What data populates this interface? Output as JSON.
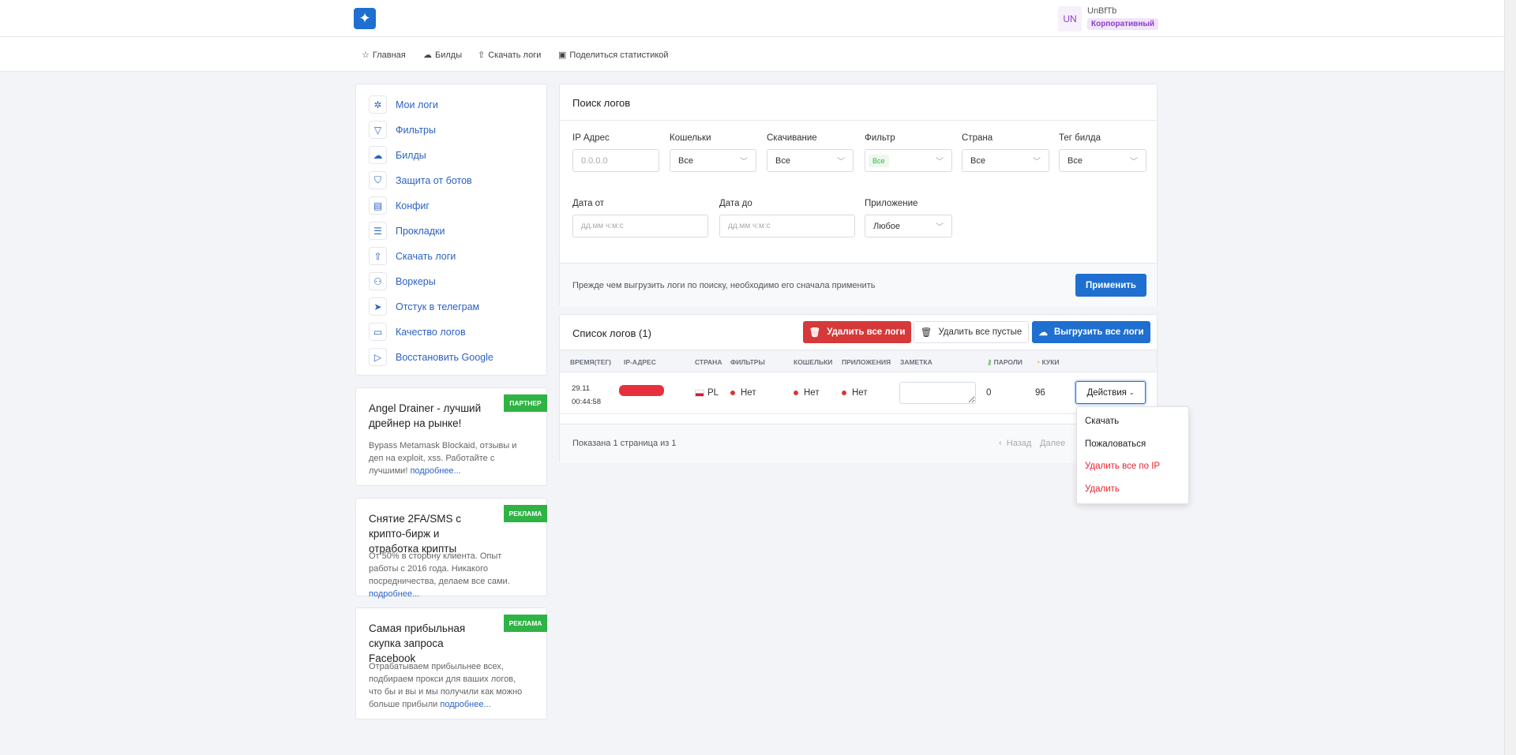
{
  "header": {
    "logo": "hummingbird-logo",
    "avatar": "UN",
    "username": "UnBfTb",
    "plan": "Корпоративный"
  },
  "nav": [
    "Главная",
    "Билды",
    "Скачать логи",
    "Поделиться статистикой"
  ],
  "sidebar": [
    "Мои логи",
    "Фильтры",
    "Билды",
    "Защита от ботов",
    "Конфиг",
    "Прокладки",
    "Скачать логи",
    "Воркеры",
    "Отстук в телеграм",
    "Качество логов",
    "Восстановить Google"
  ],
  "ads": [
    {
      "title": "Angel Drainer - лучший дрейнер на рынке!",
      "body": "Bypass Metamask Blockaid, отзывы и деп на exploit, xss. Работайте с лучшими!",
      "link": "подробнее...",
      "badge": "ПАРТНЕР"
    },
    {
      "title": "Снятие 2FA/SMS с крипто-бирж и отработка крипты",
      "body": "От 50% в сторону клиента. Опыт работы с 2016 года. Никакого посредничества, делаем все сами.",
      "link": "подробнее...",
      "badge": "РЕКЛАМА"
    },
    {
      "title": "Самая прибыльная скупка запроса Facebook",
      "body": "Отрабатываем прибыльнее всех, подбираем прокси для ваших логов, что бы и вы и мы получили как можно больше прибыли",
      "link": "подробнее...",
      "badge": "РЕКЛАМА"
    }
  ],
  "search": {
    "title": "Поиск логов",
    "ip": {
      "label": "IP Адрес",
      "placeholder": "0.0.0.0"
    },
    "wallets": {
      "label": "Кошельки",
      "value": "Все"
    },
    "download": {
      "label": "Скачивание",
      "value": "Все"
    },
    "filter": {
      "label": "Фильтр",
      "value": "Все"
    },
    "country": {
      "label": "Страна",
      "value": "Все"
    },
    "tag": {
      "label": "Тег билда",
      "value": "Все"
    },
    "date_from": {
      "label": "Дата от",
      "placeholder": "дд.мм ч:м:с"
    },
    "date_to": {
      "label": "Дата до",
      "placeholder": "дд.мм ч:м:с"
    },
    "app": {
      "label": "Приложение",
      "value": "Любое"
    },
    "hint": "Прежде чем выгрузить логи по поиску, необходимо его сначала применить",
    "apply": "Применить"
  },
  "list": {
    "title": "Список логов (1)",
    "delete_all": "Удалить все логи",
    "delete_empty": "Удалить все пустые",
    "export_all": "Выгрузить все логи",
    "columns": [
      "ВРЕМЯ(ТЕГ)",
      "IP-АДРЕС",
      "СТРАНА",
      "ФИЛЬТРЫ",
      "КОШЕЛЬКИ",
      "ПРИЛОЖЕНИЯ",
      "ЗАМЕТКА",
      "ПАРОЛИ",
      "КУКИ"
    ],
    "rows": [
      {
        "date": "29.11",
        "time": "00:44:58",
        "country": "PL",
        "filters": "Нет",
        "wallets": "Нет",
        "apps": "Нет",
        "passwords": "0",
        "cookies": "96",
        "actions": "Действия"
      }
    ],
    "pagination": "Показана 1 страница из 1",
    "prev": "Назад",
    "next": "Далее"
  },
  "actions_menu": [
    "Скачать",
    "Пожаловаться",
    "Удалить все по IP",
    "Удалить"
  ],
  "colors": {
    "primary": "#1e6fd0",
    "danger": "#d63939",
    "success": "#2fb344"
  }
}
